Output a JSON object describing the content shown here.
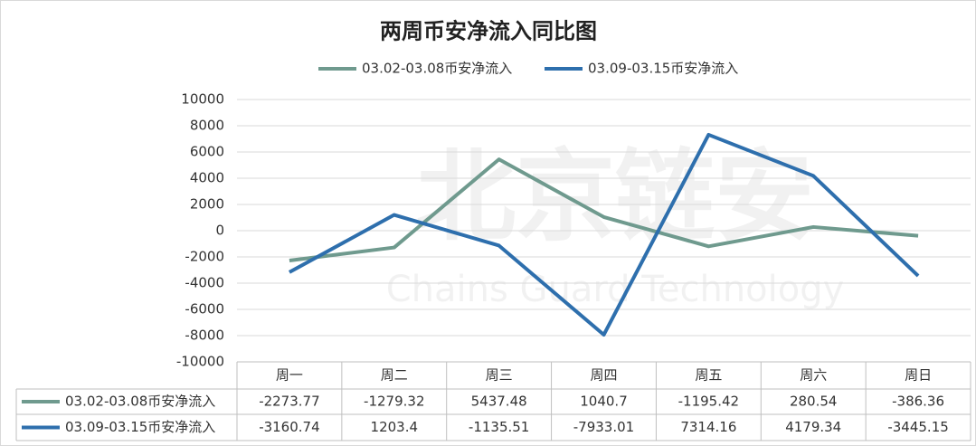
{
  "chart_data": {
    "type": "line",
    "title": "两周币安净流入同比图",
    "watermark": [
      "北京链安",
      "Chains Guard Technology"
    ],
    "categories": [
      "周一",
      "周二",
      "周三",
      "周四",
      "周五",
      "周六",
      "周日"
    ],
    "series": [
      {
        "name": "03.02-03.08币安净流入",
        "color": "#6f9a8e",
        "values": [
          -2273.77,
          -1279.32,
          5437.48,
          1040.7,
          -1195.42,
          280.54,
          -386.36
        ]
      },
      {
        "name": "03.09-03.15币安净流入",
        "color": "#2e6fad",
        "values": [
          -3160.74,
          1203.4,
          -1135.51,
          -7933.01,
          7314.16,
          4179.34,
          -3445.15
        ]
      }
    ],
    "ylim": [
      -10000,
      10000
    ],
    "yticks": [
      -10000,
      -8000,
      -6000,
      -4000,
      -2000,
      0,
      2000,
      4000,
      6000,
      8000,
      10000
    ],
    "grid": true,
    "legend": "top",
    "data_table": true
  }
}
